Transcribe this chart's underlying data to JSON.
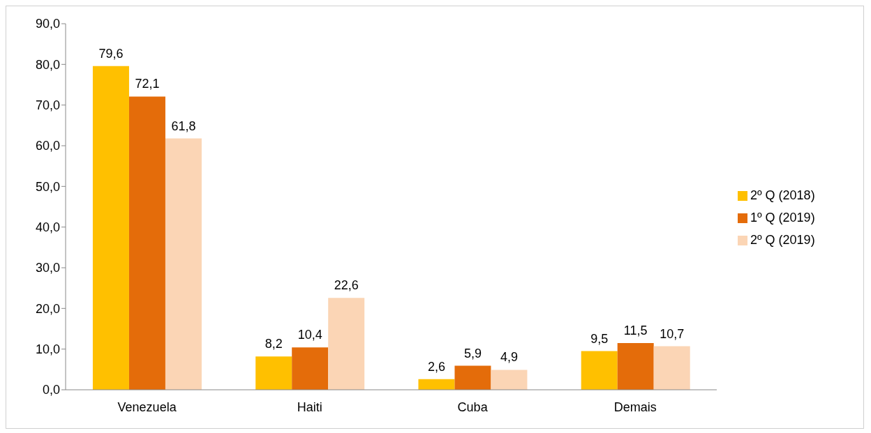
{
  "chart_data": {
    "type": "bar",
    "categories": [
      "Venezuela",
      "Haiti",
      "Cuba",
      "Demais"
    ],
    "series": [
      {
        "name": "2º Q (2018)",
        "color": "#ffc000",
        "values": [
          79.6,
          8.2,
          2.6,
          9.5
        ],
        "value_labels": [
          "79,6",
          "8,2",
          "2,6",
          "9,5"
        ]
      },
      {
        "name": "1º Q (2019)",
        "color": "#e46c0a",
        "values": [
          72.1,
          10.4,
          5.9,
          11.5
        ],
        "value_labels": [
          "72,1",
          "10,4",
          "5,9",
          "11,5"
        ]
      },
      {
        "name": "2º Q (2019)",
        "color": "#fbd5b5",
        "values": [
          61.8,
          22.6,
          4.9,
          10.7
        ],
        "value_labels": [
          "61,8",
          "22,6",
          "4,9",
          "10,7"
        ]
      }
    ],
    "ylim": [
      0,
      90
    ],
    "yticks": [
      {
        "value": 0,
        "label": "0,0"
      },
      {
        "value": 10,
        "label": "10,0"
      },
      {
        "value": 20,
        "label": "20,0"
      },
      {
        "value": 30,
        "label": "30,0"
      },
      {
        "value": 40,
        "label": "40,0"
      },
      {
        "value": 50,
        "label": "50,0"
      },
      {
        "value": 60,
        "label": "60,0"
      },
      {
        "value": 70,
        "label": "70,0"
      },
      {
        "value": 80,
        "label": "80,0"
      },
      {
        "value": 90,
        "label": "90,0"
      }
    ],
    "grid": false,
    "legend": "right"
  }
}
